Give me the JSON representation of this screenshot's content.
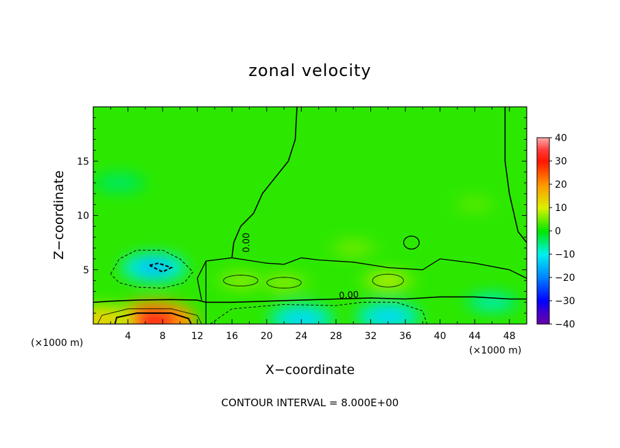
{
  "chart_data": {
    "type": "heatmap",
    "title": "zonal velocity",
    "xlabel": "X−coordinate",
    "ylabel": "Z−coordinate",
    "x_unit_left": "(×1000 m)",
    "x_unit_right": "(×1000 m)",
    "xlim": [
      0,
      50
    ],
    "ylim": [
      0,
      20
    ],
    "x_ticks": [
      4,
      8,
      12,
      16,
      20,
      24,
      28,
      32,
      36,
      40,
      44,
      48
    ],
    "y_ticks": [
      5,
      10,
      15
    ],
    "colorbar": {
      "min": -40,
      "max": 40,
      "ticks": [
        40,
        30,
        20,
        10,
        0,
        -10,
        -20,
        -30,
        -40
      ],
      "tick_labels": [
        "40",
        "30",
        "20",
        "10",
        "0",
        "−10",
        "−20",
        "−30",
        "−40"
      ]
    },
    "contour_interval": 8.0,
    "contour_labels": [
      "0.00",
      "0.00"
    ],
    "background_value": 2,
    "features": [
      {
        "x": 7,
        "z": 0.3,
        "value": 32
      },
      {
        "x": 1,
        "z": 0.4,
        "value": 14
      },
      {
        "x": 7,
        "z": 5.2,
        "value": -14
      },
      {
        "x": 24,
        "z": 0.5,
        "value": -12
      },
      {
        "x": 34,
        "z": 0.7,
        "value": -12
      },
      {
        "x": 46,
        "z": 2.0,
        "value": -7
      },
      {
        "x": 34,
        "z": 4.0,
        "value": 8
      },
      {
        "x": 17,
        "z": 4.0,
        "value": 6
      },
      {
        "x": 22,
        "z": 3.8,
        "value": 6
      },
      {
        "x": 30,
        "z": 7.0,
        "value": 5
      },
      {
        "x": 44,
        "z": 11.0,
        "value": 4
      },
      {
        "x": 3,
        "z": 13.0,
        "value": -4
      }
    ]
  },
  "footer": "CONTOUR INTERVAL = 8.000E+00"
}
